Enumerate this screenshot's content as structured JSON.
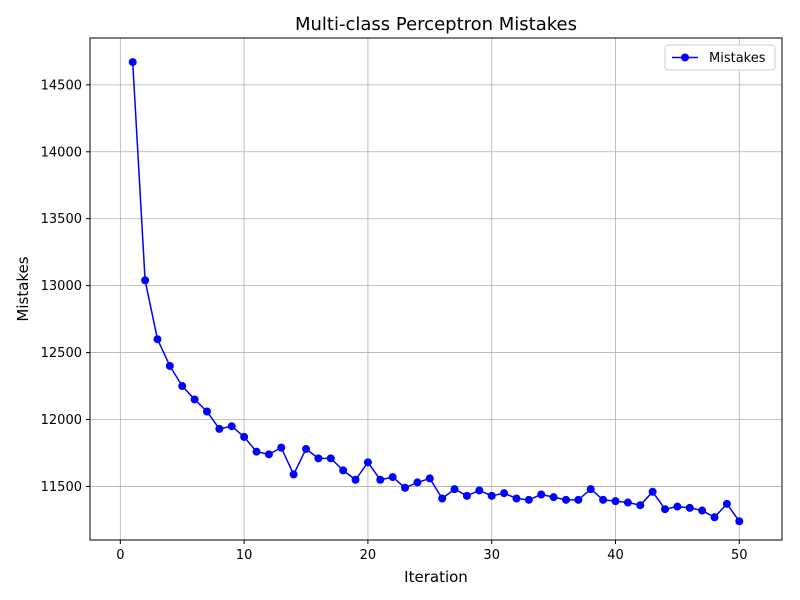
{
  "chart_data": {
    "type": "line",
    "title": "Multi-class Perceptron Mistakes",
    "xlabel": "Iteration",
    "ylabel": "Mistakes",
    "xlim": [
      -2.45,
      53.45
    ],
    "ylim": [
      11100,
      14850
    ],
    "xticks": [
      0,
      10,
      20,
      30,
      40,
      50
    ],
    "yticks": [
      11500,
      12000,
      12500,
      13000,
      13500,
      14000,
      14500
    ],
    "grid": true,
    "legend_position": "upper right",
    "series": [
      {
        "name": "Mistakes",
        "color": "#0000ff",
        "marker": "circle",
        "x": [
          1,
          2,
          3,
          4,
          5,
          6,
          7,
          8,
          9,
          10,
          11,
          12,
          13,
          14,
          15,
          16,
          17,
          18,
          19,
          20,
          21,
          22,
          23,
          24,
          25,
          26,
          27,
          28,
          29,
          30,
          31,
          32,
          33,
          34,
          35,
          36,
          37,
          38,
          39,
          40,
          41,
          42,
          43,
          44,
          45,
          46,
          47,
          48,
          49,
          50
        ],
        "y": [
          14670,
          13040,
          12600,
          12400,
          12250,
          12150,
          12060,
          11930,
          11950,
          11870,
          11760,
          11740,
          11790,
          11590,
          11780,
          11710,
          11710,
          11620,
          11550,
          11680,
          11550,
          11570,
          11490,
          11530,
          11560,
          11410,
          11480,
          11430,
          11470,
          11430,
          11450,
          11410,
          11400,
          11440,
          11420,
          11400,
          11400,
          11480,
          11400,
          11390,
          11380,
          11360,
          11460,
          11330,
          11350,
          11340,
          11320,
          11270,
          11370,
          11240
        ]
      }
    ]
  }
}
